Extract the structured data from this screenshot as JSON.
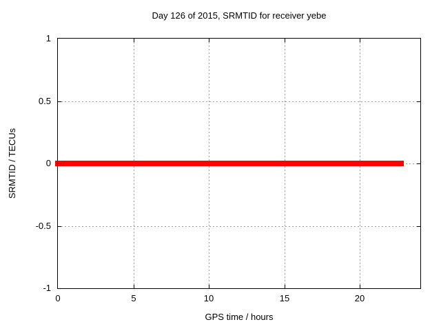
{
  "chart_data": {
    "type": "line",
    "title": "Day 126 of 2015, SRMTID for receiver yebe",
    "xlabel": "GPS time / hours",
    "ylabel": "SRMTID / TECUs",
    "xlim": [
      0,
      24
    ],
    "ylim": [
      -1,
      1
    ],
    "xticks": [
      0,
      5,
      10,
      15,
      20
    ],
    "xtick_labels": [
      "0",
      "5",
      "10",
      "15",
      "20"
    ],
    "yticks": [
      -1,
      -0.5,
      0,
      0.5,
      1
    ],
    "ytick_labels": [
      "-1",
      "-0.5",
      "0",
      "0.5",
      "1"
    ],
    "grid": true,
    "grid_style": "dashed",
    "legend": "none",
    "colors": {
      "series": "#ff0000",
      "grid": "#9a9a9a",
      "axis": "#000000",
      "text": "#000000",
      "background": "#ffffff"
    },
    "series": [
      {
        "name": "SRMTID",
        "color": "#ff0000",
        "x": [
          0,
          22.9
        ],
        "y": [
          0,
          0
        ]
      }
    ]
  }
}
